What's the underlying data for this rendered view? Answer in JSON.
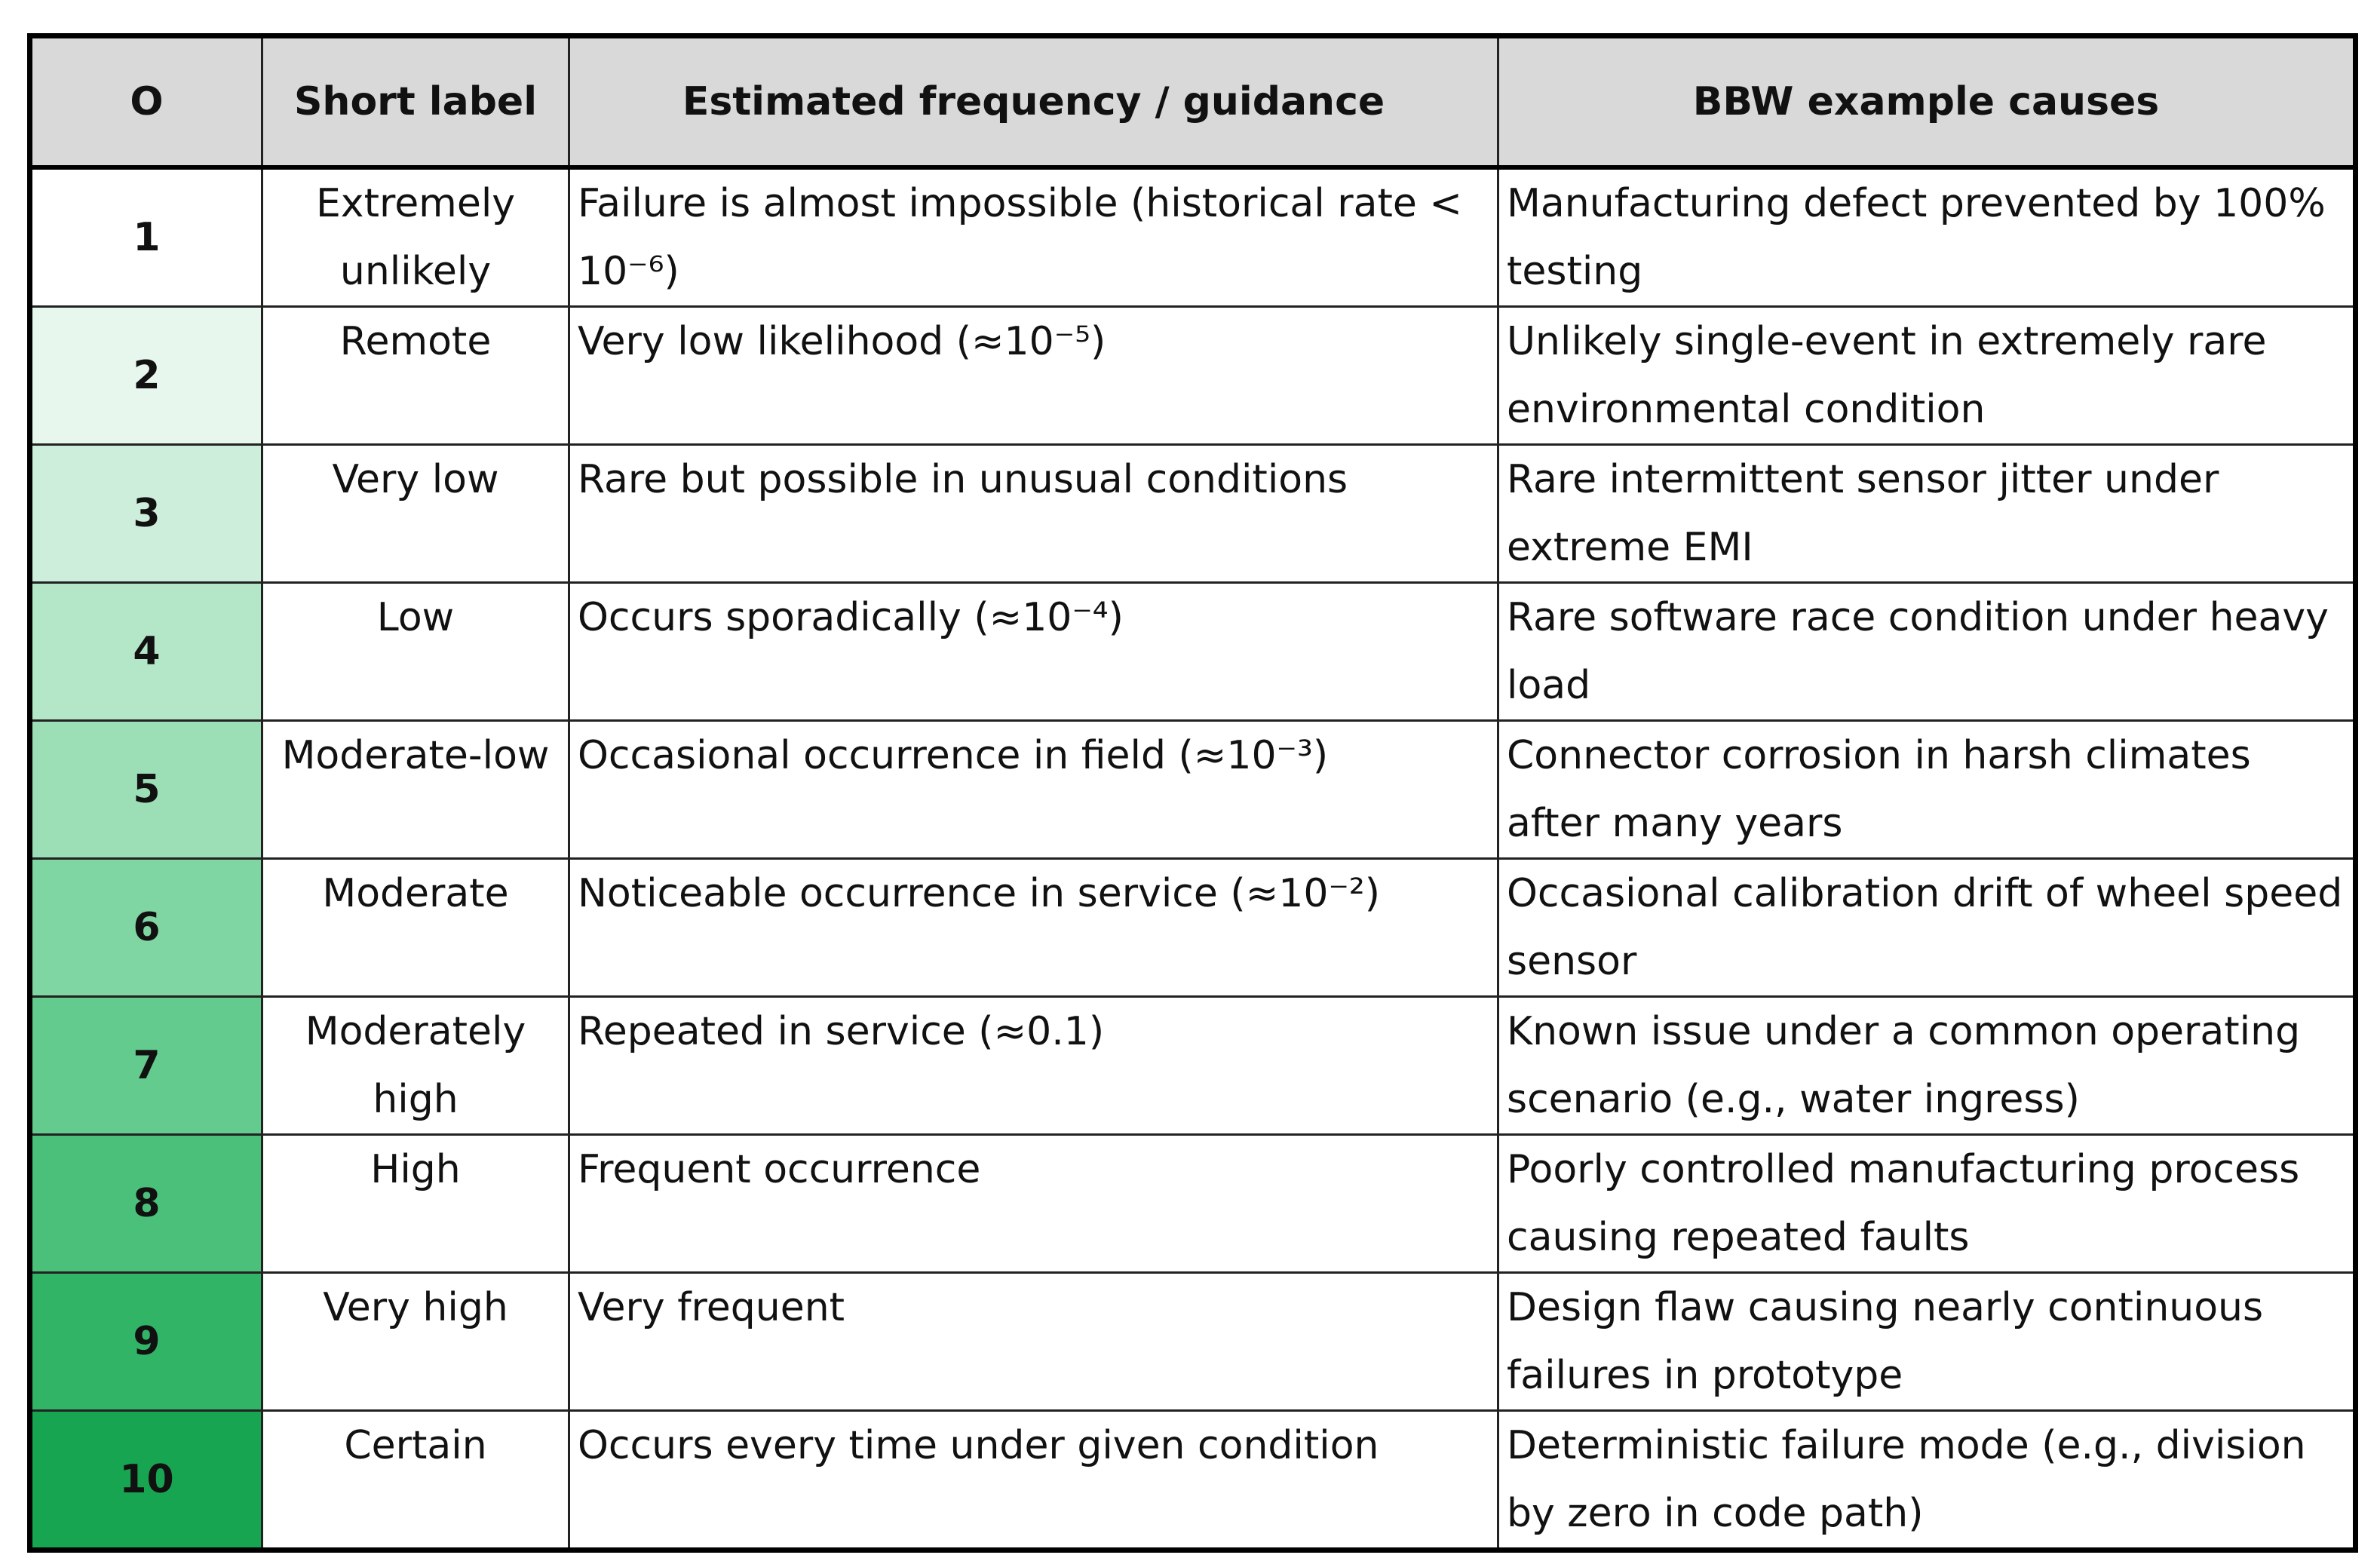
{
  "table": {
    "header": [
      "O",
      "Short label",
      "Estimated frequency / guidance",
      "BBW example causes"
    ],
    "rows": [
      [
        1,
        "Extremely unlikely",
        "Failure is almost impossible (historical rate < 10⁻⁶)",
        "Manufacturing defect prevented by 100% testing"
      ],
      [
        2,
        "Remote",
        "Very low likelihood (≈10⁻⁵)",
        "Unlikely single-event in extremely rare environmental condition"
      ],
      [
        3,
        "Very low",
        "Rare but possible in unusual conditions",
        "Rare intermittent sensor jitter under extreme EMI"
      ],
      [
        4,
        "Low",
        "Occurs sporadically (≈10⁻⁴)",
        "Rare software race condition under heavy load"
      ],
      [
        5,
        "Moderate-low",
        "Occasional occurrence in field (≈10⁻³)",
        "Connector corrosion in harsh climates after many years"
      ],
      [
        6,
        "Moderate",
        "Noticeable occurrence in service (≈10⁻²)",
        "Occasional calibration drift of wheel speed sensor"
      ],
      [
        7,
        "Moderately high",
        "Repeated in service (≈0.1)",
        "Known issue under a common operating scenario (e.g., water ingress)"
      ],
      [
        8,
        "High",
        "Frequent occurrence",
        "Poorly controlled manufacturing process causing repeated faults"
      ],
      [
        9,
        "Very high",
        "Very frequent",
        "Design flaw causing nearly continuous failures in prototype"
      ],
      [
        10,
        "Certain",
        "Occurs every time under given condition",
        "Deterministic failure mode (e.g., division by zero in code path)"
      ]
    ]
  }
}
